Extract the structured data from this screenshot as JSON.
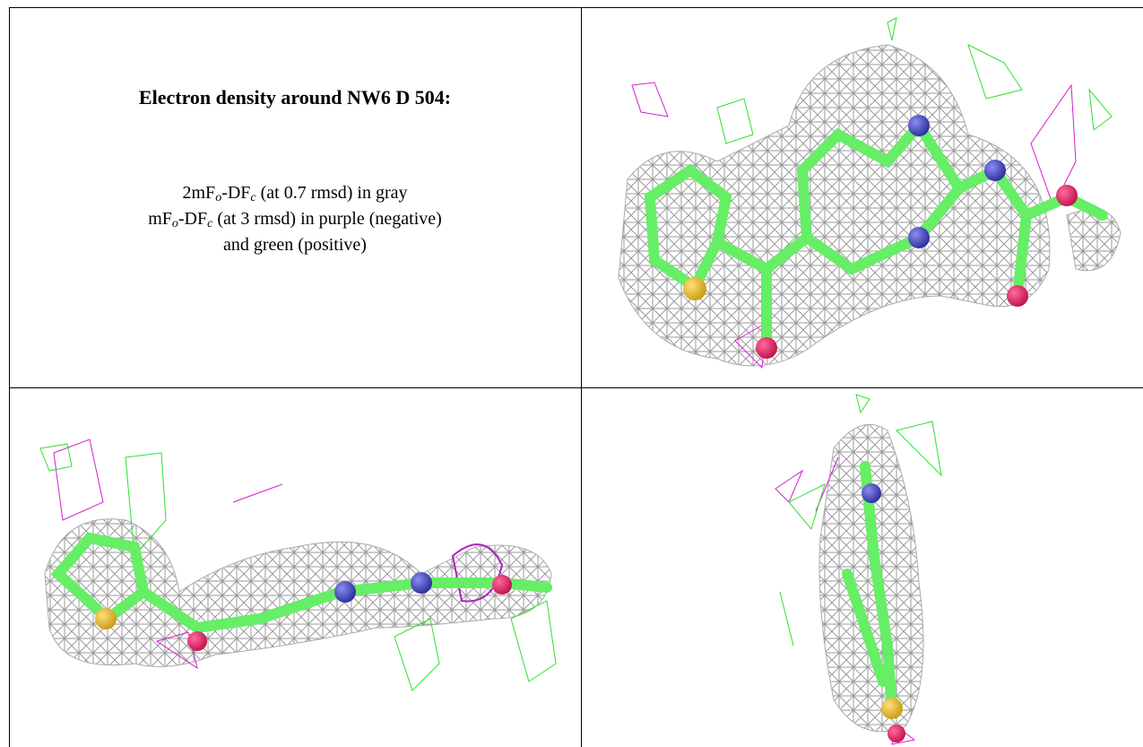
{
  "title": "Electron density around NW6 D 504:",
  "legend": [
    [
      "2mF",
      "o",
      "-DF",
      "c",
      " (at 0.7 rmsd) in gray"
    ],
    [
      "mF",
      "o",
      "-DF",
      "c",
      " (at 3 rmsd) in purple (negative)"
    ],
    [
      "and green (positive)"
    ]
  ]
}
